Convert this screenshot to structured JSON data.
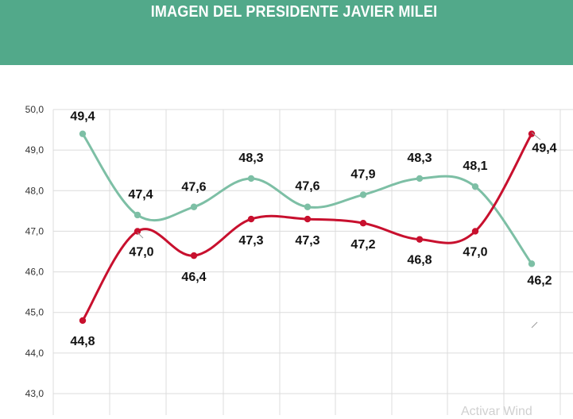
{
  "header": {
    "title": "IMAGEN DEL PRESIDENTE JAVIER MILEI"
  },
  "colors": {
    "header_bg": "#52a98a",
    "series_green": "#7dbfa5",
    "series_red": "#c8102e",
    "grid": "#dcdcdc"
  },
  "watermark": "Activar Wind",
  "chart_data": {
    "type": "line",
    "title": "IMAGEN DEL PRESIDENTE JAVIER MILEI",
    "xlabel": "",
    "ylabel": "",
    "ylim": [
      43,
      50
    ],
    "yticks": [
      43,
      44,
      45,
      46,
      47,
      48,
      49,
      50
    ],
    "ytick_labels": [
      "43,0",
      "44,0",
      "45,0",
      "46,0",
      "47,0",
      "48,0",
      "49,0",
      "50,0"
    ],
    "x": [
      1,
      2,
      3,
      4,
      5,
      6,
      7,
      8,
      9
    ],
    "grid": true,
    "series": [
      {
        "name": "green",
        "color": "#7dbfa5",
        "values": [
          49.4,
          47.4,
          47.6,
          48.3,
          47.6,
          47.9,
          48.3,
          48.1,
          46.2
        ],
        "labels": [
          "49,4",
          "47,4",
          "47,6",
          "48,3",
          "47,6",
          "47,9",
          "48,3",
          "48,1",
          "46,2"
        ]
      },
      {
        "name": "red",
        "color": "#c8102e",
        "values": [
          44.8,
          47.0,
          46.4,
          47.3,
          47.3,
          47.2,
          46.8,
          47.0,
          49.4
        ],
        "labels": [
          "44,8",
          "47,0",
          "46,4",
          "47,3",
          "47,3",
          "47,2",
          "46,8",
          "47,0",
          "49,4"
        ]
      }
    ]
  }
}
